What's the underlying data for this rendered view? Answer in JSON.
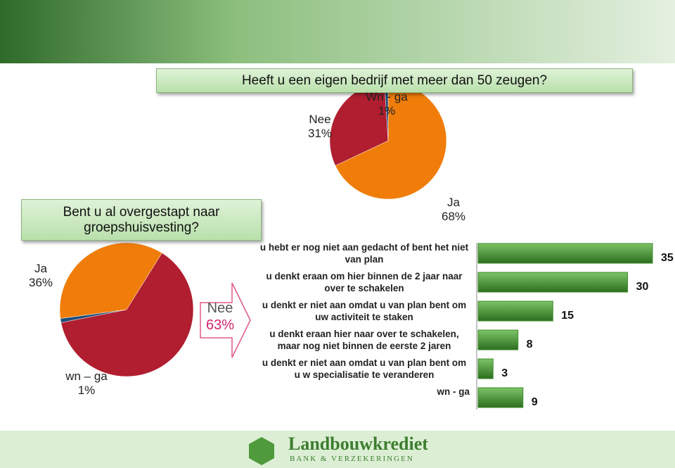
{
  "chart_data": [
    {
      "type": "pie",
      "title": "Heeft u een eigen bedrijf met meer dan 50 zeugen?",
      "categories": [
        "Ja",
        "Nee",
        "Wn - ga"
      ],
      "values": [
        68,
        31,
        1
      ],
      "value_labels": [
        "68%",
        "31%",
        "1%"
      ],
      "colors": [
        "#f07d0a",
        "#b01e2f",
        "#1f4e79"
      ]
    },
    {
      "type": "pie",
      "title": "Bent u al overgestapt naar groepshuisvesting?",
      "categories": [
        "Nee",
        "wn – ga",
        "Ja"
      ],
      "values": [
        63,
        1,
        36
      ],
      "value_labels": [
        "63%",
        "1%",
        "36%"
      ],
      "colors": [
        "#b01e2f",
        "#1f4e79",
        "#f07d0a"
      ]
    },
    {
      "type": "bar",
      "categories": [
        "u hebt er nog niet aan gedacht of bent het niet van plan",
        "u denkt eraan om hier binnen de 2 jaar naar over te schakelen",
        "u denkt er niet aan omdat u van plan bent om uw activiteit te staken",
        "u denkt eraan hier naar over te schakelen, maar nog niet binnen de eerste 2 jaren",
        "u denkt er niet aan omdat u van plan bent om u w specialisatie te veranderen",
        "wn - ga"
      ],
      "values": [
        35,
        30,
        15,
        8,
        3,
        9
      ],
      "color": "#3d8b2b"
    }
  ],
  "footer": {
    "brand": "Landbouwkrediet",
    "tagline": "BANK & VERZEKERINGEN"
  }
}
